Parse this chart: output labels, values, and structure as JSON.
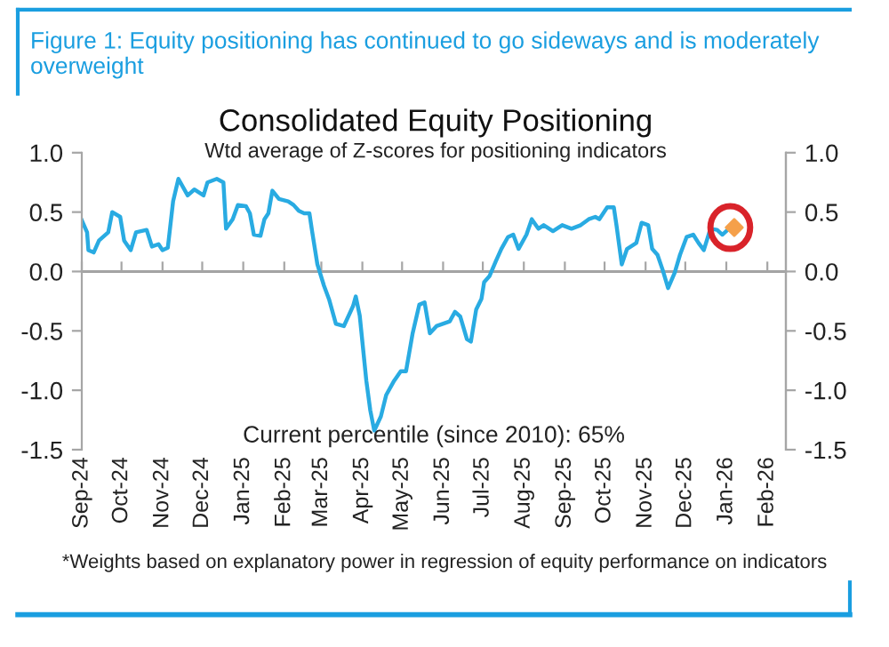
{
  "chart_data": {
    "type": "line",
    "title": "Figure 1: Equity positioning has continued to go sideways and is moderately overweight",
    "subtitle": "Consolidated Equity Positioning",
    "annotations": [
      "Wtd average of Z-scores for positioning indicators",
      "Current percentile (since 2010): 65%",
      "*Weights based on explanatory power in regression of equity performance on indicators"
    ],
    "series": [
      {
        "color": "#29abe2",
        "x": [
          "2024-09-01",
          "2024-09-05",
          "2024-09-06",
          "2024-09-10",
          "2024-09-14",
          "2024-09-21",
          "2024-09-24",
          "2024-09-30",
          "2024-10-03",
          "2024-10-08",
          "2024-10-12",
          "2024-10-20",
          "2024-10-24",
          "2024-10-29",
          "2024-11-01",
          "2024-11-05",
          "2024-11-09",
          "2024-11-13",
          "2024-11-20",
          "2024-11-25",
          "2024-12-02",
          "2024-12-05",
          "2024-12-12",
          "2024-12-17",
          "2024-12-19",
          "2024-12-24",
          "2024-12-28",
          "2025-01-03",
          "2025-01-06",
          "2025-01-09",
          "2025-01-14",
          "2025-01-17",
          "2025-01-20",
          "2025-01-23",
          "2025-01-28",
          "2025-02-04",
          "2025-02-08",
          "2025-02-12",
          "2025-02-16",
          "2025-02-20",
          "2025-02-22",
          "2025-02-26",
          "2025-03-03",
          "2025-03-07",
          "2025-03-12",
          "2025-03-18",
          "2025-03-25",
          "2025-03-27",
          "2025-03-30",
          "2025-04-04",
          "2025-04-07",
          "2025-04-10",
          "2025-04-15",
          "2025-04-19",
          "2025-04-25",
          "2025-04-30",
          "2025-05-04",
          "2025-05-09",
          "2025-05-14",
          "2025-05-18",
          "2025-05-22",
          "2025-05-27",
          "2025-06-06",
          "2025-06-10",
          "2025-06-14",
          "2025-06-19",
          "2025-06-22",
          "2025-06-26",
          "2025-06-30",
          "2025-07-02",
          "2025-07-06",
          "2025-07-11",
          "2025-07-15",
          "2025-07-20",
          "2025-07-24",
          "2025-07-28",
          "2025-08-03",
          "2025-08-07",
          "2025-08-12",
          "2025-08-16",
          "2025-08-23",
          "2025-08-30",
          "2025-09-06",
          "2025-09-13",
          "2025-09-19",
          "2025-09-24",
          "2025-09-27",
          "2025-10-03",
          "2025-10-08",
          "2025-10-10",
          "2025-10-14",
          "2025-10-18",
          "2025-10-25",
          "2025-10-29",
          "2025-11-03",
          "2025-11-06",
          "2025-11-10",
          "2025-11-14",
          "2025-11-18",
          "2025-11-23",
          "2025-11-27",
          "2025-12-02",
          "2025-12-07",
          "2025-12-11",
          "2025-12-15",
          "2025-12-20",
          "2025-12-25",
          "2025-12-29",
          "2026-01-02"
        ],
        "values": [
          0.43,
          0.33,
          0.18,
          0.16,
          0.26,
          0.33,
          0.5,
          0.46,
          0.26,
          0.18,
          0.33,
          0.35,
          0.21,
          0.23,
          0.18,
          0.2,
          0.59,
          0.78,
          0.64,
          0.69,
          0.64,
          0.75,
          0.78,
          0.75,
          0.36,
          0.44,
          0.56,
          0.55,
          0.49,
          0.31,
          0.3,
          0.44,
          0.49,
          0.68,
          0.61,
          0.59,
          0.56,
          0.51,
          0.49,
          0.49,
          0.34,
          0.06,
          -0.12,
          -0.24,
          -0.44,
          -0.46,
          -0.29,
          -0.21,
          -0.37,
          -0.92,
          -1.17,
          -1.34,
          -1.22,
          -1.04,
          -0.92,
          -0.84,
          -0.84,
          -0.52,
          -0.28,
          -0.26,
          -0.52,
          -0.46,
          -0.42,
          -0.34,
          -0.38,
          -0.57,
          -0.59,
          -0.32,
          -0.23,
          -0.09,
          -0.04,
          0.09,
          0.19,
          0.29,
          0.31,
          0.19,
          0.31,
          0.44,
          0.36,
          0.39,
          0.34,
          0.39,
          0.36,
          0.39,
          0.44,
          0.46,
          0.44,
          0.54,
          0.54,
          0.39,
          0.06,
          0.19,
          0.24,
          0.41,
          0.39,
          0.19,
          0.14,
          0.01,
          -0.14,
          -0.01,
          0.14,
          0.29,
          0.31,
          0.24,
          0.18,
          0.36,
          0.35,
          0.31,
          0.35
        ]
      },
      {
        "type": "scatter",
        "marker": "diamond",
        "color": "#f5a04a",
        "x": [
          "2026-01-07"
        ],
        "values": [
          0.37
        ]
      }
    ],
    "xlim": [
      "2024-09-01",
      "2026-02-15"
    ],
    "xticks": [
      {
        "value": "2024-09-01",
        "label": "Sep-24"
      },
      {
        "value": "2024-10-01",
        "label": "Oct-24"
      },
      {
        "value": "2024-11-01",
        "label": "Nov-24"
      },
      {
        "value": "2024-12-01",
        "label": "Dec-24"
      },
      {
        "value": "2025-01-01",
        "label": "Jan-25"
      },
      {
        "value": "2025-02-01",
        "label": "Feb-25"
      },
      {
        "value": "2025-03-01",
        "label": "Mar-25"
      },
      {
        "value": "2025-04-01",
        "label": "Apr-25"
      },
      {
        "value": "2025-05-01",
        "label": "May-25"
      },
      {
        "value": "2025-06-01",
        "label": "Jun-25"
      },
      {
        "value": "2025-07-01",
        "label": "Jul-25"
      },
      {
        "value": "2025-08-01",
        "label": "Aug-25"
      },
      {
        "value": "2025-09-01",
        "label": "Sep-25"
      },
      {
        "value": "2025-10-01",
        "label": "Oct-25"
      },
      {
        "value": "2025-11-01",
        "label": "Nov-25"
      },
      {
        "value": "2025-12-01",
        "label": "Dec-25"
      },
      {
        "value": "2026-01-01",
        "label": "Jan-26"
      },
      {
        "value": "2026-02-01",
        "label": "Feb-26"
      }
    ],
    "ylim": [
      -1.5,
      1.0
    ],
    "yticks": [
      {
        "value": 1.0,
        "label": "1.0"
      },
      {
        "value": 0.5,
        "label": "0.5"
      },
      {
        "value": 0.0,
        "label": "0.0"
      },
      {
        "value": -0.5,
        "label": "-0.5"
      },
      {
        "value": -1.0,
        "label": "-1.0"
      },
      {
        "value": -1.5,
        "label": "-1.5"
      }
    ],
    "y2lim": [
      -1.5,
      1.0
    ],
    "y2ticks": [
      {
        "value": 1.0,
        "label": "1.0"
      },
      {
        "value": 0.5,
        "label": "0.5"
      },
      {
        "value": 0.0,
        "label": "0.0"
      },
      {
        "value": -0.5,
        "label": "-0.5"
      },
      {
        "value": -1.0,
        "label": "-1.0"
      },
      {
        "value": -1.5,
        "label": "-1.5"
      }
    ],
    "ref_lines": [
      {
        "axis": "y",
        "value": 0,
        "color": "#a6a6a6"
      }
    ],
    "grid": false,
    "legend": false,
    "marker": "none",
    "line_style": "solid"
  }
}
